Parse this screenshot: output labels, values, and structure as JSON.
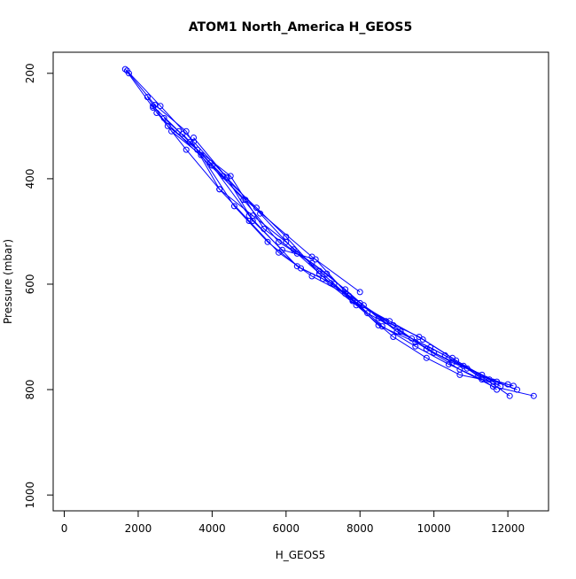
{
  "chart_data": {
    "type": "line",
    "title": "ATOM1 North_America H_GEOS5",
    "xlabel": "H_GEOS5",
    "ylabel": "Pressure (mbar)",
    "xlim": [
      -300,
      13100
    ],
    "ylim": [
      1030,
      160
    ],
    "y_reversed": true,
    "x_ticks": [
      0,
      2000,
      4000,
      6000,
      8000,
      10000,
      12000
    ],
    "y_ticks": [
      200,
      400,
      600,
      800,
      1000
    ],
    "grid": false,
    "legend": "none",
    "color": "#0000ff",
    "marker": "open-circle",
    "series": [
      {
        "x": [
          1700,
          2600,
          3500,
          4400,
          5300,
          6200,
          7100,
          8000,
          8900,
          9800,
          10700,
          11600,
          12700
        ],
        "y": [
          195,
          262,
          330,
          398,
          466,
          534,
          580,
          636,
          678,
          723,
          762,
          794,
          812
        ]
      },
      {
        "x": [
          1750,
          2450,
          3300,
          4200,
          5100,
          6000,
          6900,
          7800,
          8700,
          9600,
          10500,
          11400,
          12050
        ],
        "y": [
          200,
          260,
          310,
          420,
          470,
          520,
          575,
          630,
          670,
          700,
          740,
          780,
          812
        ]
      },
      {
        "x": [
          2250,
          2800,
          3600,
          4500,
          5400,
          6300,
          7200,
          8100,
          9000,
          9900,
          10800,
          11700,
          12150
        ],
        "y": [
          245,
          300,
          345,
          395,
          495,
          542,
          598,
          640,
          690,
          720,
          755,
          785,
          793
        ]
      },
      {
        "x": [
          2400,
          3100,
          3950,
          4850,
          5800,
          6700,
          7600,
          8500,
          9400,
          10300,
          11200,
          12000
        ],
        "y": [
          262,
          310,
          370,
          440,
          520,
          560,
          610,
          665,
          703,
          735,
          773,
          790
        ]
      },
      {
        "x": [
          2700,
          3400,
          4300,
          5200,
          6000,
          6900,
          7800,
          8800,
          9700,
          10600,
          11500,
          12250
        ],
        "y": [
          285,
          330,
          395,
          455,
          510,
          580,
          632,
          670,
          705,
          745,
          781,
          800
        ]
      },
      {
        "x": [
          2900,
          3700,
          4600,
          5500,
          6400,
          7300,
          8200,
          9100,
          10000,
          10900,
          11700
        ],
        "y": [
          310,
          355,
          452,
          520,
          570,
          600,
          655,
          690,
          730,
          760,
          800
        ]
      },
      {
        "x": [
          3200,
          4000,
          5000,
          6300,
          7000,
          7900,
          8900,
          9800,
          10700,
          11600
        ],
        "y": [
          315,
          375,
          470,
          566,
          590,
          640,
          700,
          740,
          772,
          785
        ]
      },
      {
        "x": [
          3500,
          4400,
          5100,
          5900,
          6800,
          7700,
          8600,
          9500,
          10400,
          11300
        ],
        "y": [
          322,
          398,
          480,
          535,
          553,
          622,
          680,
          718,
          752,
          781
        ]
      },
      {
        "x": [
          1650,
          2400,
          3300,
          4200,
          5000,
          5800,
          6700,
          7600,
          8500,
          9500,
          10500,
          11300,
          11800
        ],
        "y": [
          192,
          265,
          345,
          420,
          480,
          540,
          585,
          618,
          678,
          710,
          749,
          772,
          794
        ]
      },
      {
        "x": [
          2500,
          4900,
          6700,
          8000
        ],
        "y": [
          275,
          440,
          548,
          615
        ]
      }
    ]
  }
}
